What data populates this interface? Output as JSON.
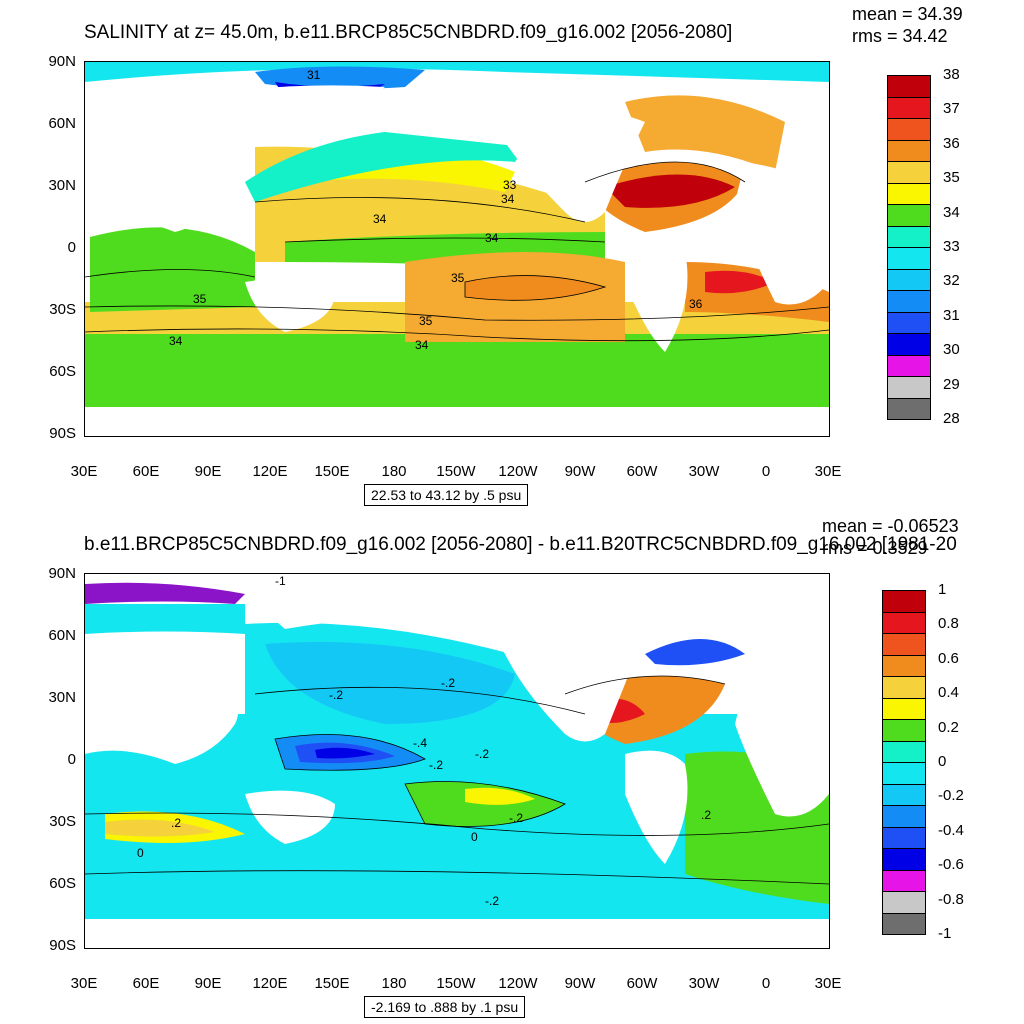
{
  "panel1": {
    "title": "SALINITY at z=  45.0m, b.e11.BRCP85C5CNBDRD.f09_g16.002 [2056-2080]",
    "mean": "mean = 34.39",
    "rms": "rms = 34.42",
    "range_text": "22.53 to 43.12 by .5 psu",
    "contour_labels": [
      "31",
      "33",
      "34",
      "34",
      "34",
      "35",
      "35",
      "35",
      "34",
      "34",
      "36"
    ],
    "colorbar": {
      "labels": [
        "38",
        "37",
        "36",
        "35",
        "34",
        "33",
        "32",
        "31",
        "30",
        "29",
        "28"
      ],
      "colors": [
        "#c0000a",
        "#e6161e",
        "#f0541e",
        "#f08c1e",
        "#f5aa32",
        "#f5d23c",
        "#faf500",
        "#50dc1e",
        "#28e664",
        "#14f0c8",
        "#14e6f0",
        "#14c8f5",
        "#148cf5",
        "#1e50f5",
        "#0000e6",
        "#8c14c8",
        "#e614e6",
        "#c8c8c8",
        "#6e6e6e"
      ]
    }
  },
  "panel2": {
    "title": "b.e11.BRCP85C5CNBDRD.f09_g16.002 [2056-2080] - b.e11.B20TRC5CNBDRD.f09_g16.002 [1981-20",
    "mean": "mean = -0.06523",
    "rms": "rms = 0.3529",
    "range_text": "-2.169 to .888 by .1 psu",
    "contour_labels": [
      "-1",
      "-.2",
      "-.2",
      "-.4",
      "-.2",
      "-.2",
      "0",
      ".2",
      "0",
      "-.2",
      ".2",
      "-.2"
    ],
    "colorbar": {
      "labels": [
        "1",
        "0.8",
        "0.6",
        "0.4",
        "0.2",
        "0",
        "-0.2",
        "-0.4",
        "-0.6",
        "-0.8",
        "-1"
      ],
      "colors": [
        "#c0000a",
        "#e6161e",
        "#f0541e",
        "#f08c1e",
        "#f5aa32",
        "#f5d23c",
        "#faf500",
        "#50dc1e",
        "#28e664",
        "#14f0c8",
        "#14e6f0",
        "#14c8f5",
        "#148cf5",
        "#1e50f5",
        "#0000e6",
        "#8c14c8",
        "#e614e6",
        "#c8c8c8",
        "#6e6e6e"
      ]
    }
  },
  "axes": {
    "y_labels": [
      "90N",
      "60N",
      "30N",
      "0",
      "30S",
      "60S",
      "90S"
    ],
    "x_labels": [
      "30E",
      "60E",
      "90E",
      "120E",
      "150E",
      "180",
      "150W",
      "120W",
      "90W",
      "60W",
      "30W",
      "0",
      "30E"
    ]
  }
}
